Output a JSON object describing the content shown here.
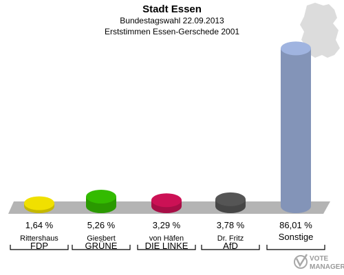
{
  "header": {
    "title": "Stadt Essen",
    "subtitle1": "Bundestagswahl 22.09.2013",
    "subtitle2": "Erststimmen Essen-Gerschede 2001"
  },
  "logo": {
    "line1": "VOTE",
    "line2": "MANAGER"
  },
  "chart_data": {
    "type": "bar",
    "title": "Stadt Essen",
    "subtitle": "Bundestagswahl 22.09.2013 / Erststimmen Essen-Gerschede 2001",
    "ylim": [
      0,
      100
    ],
    "grid": false,
    "categories": [
      "FDP",
      "GRÜNE",
      "DIE LINKE",
      "AfD",
      "Sonstige"
    ],
    "candidates": [
      "Rittershaus",
      "Giesbert",
      "von Häfen",
      "Dr. Fritz",
      ""
    ],
    "values": [
      1.64,
      5.26,
      3.29,
      3.78,
      86.01
    ],
    "value_labels": [
      "1,64 %",
      "5,26 %",
      "3,29 %",
      "3,78 %",
      "86,01 %"
    ],
    "colors": [
      "#f0e000",
      "#33bb00",
      "#cc1155",
      "#555555",
      "#a0b4e0"
    ]
  }
}
